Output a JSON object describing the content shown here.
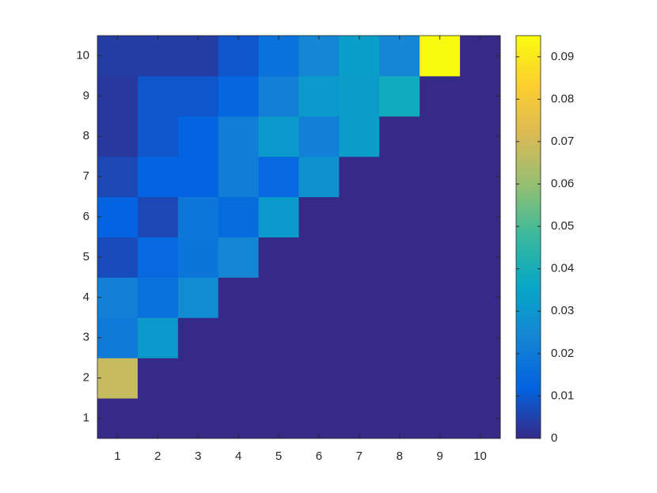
{
  "chart_data": {
    "type": "heatmap",
    "x": [
      1,
      2,
      3,
      4,
      5,
      6,
      7,
      8,
      9,
      10
    ],
    "y": [
      1,
      2,
      3,
      4,
      5,
      6,
      7,
      8,
      9,
      10
    ],
    "z": [
      [
        0,
        0,
        0,
        0,
        0,
        0,
        0,
        0,
        0,
        0
      ],
      [
        0.068,
        0,
        0,
        0,
        0,
        0,
        0,
        0,
        0,
        0
      ],
      [
        0.02,
        0.031,
        0,
        0,
        0,
        0,
        0,
        0,
        0,
        0
      ],
      [
        0.022,
        0.017,
        0.026,
        0,
        0,
        0,
        0,
        0,
        0,
        0
      ],
      [
        0.007,
        0.014,
        0.018,
        0.024,
        0,
        0,
        0,
        0,
        0,
        0
      ],
      [
        0.012,
        0.006,
        0.019,
        0.015,
        0.031,
        0,
        0,
        0,
        0,
        0
      ],
      [
        0.006,
        0.012,
        0.012,
        0.021,
        0.014,
        0.028,
        0,
        0,
        0,
        0
      ],
      [
        0.003,
        0.009,
        0.012,
        0.021,
        0.031,
        0.022,
        0.032,
        0,
        0,
        0
      ],
      [
        0.003,
        0.009,
        0.009,
        0.013,
        0.022,
        0.031,
        0.032,
        0.038,
        0,
        0
      ],
      [
        0.004,
        0.004,
        0.004,
        0.009,
        0.017,
        0.024,
        0.033,
        0.024,
        0.095,
        0
      ]
    ],
    "xlim": [
      0.5,
      10.5
    ],
    "ylim": [
      0.5,
      10.5
    ],
    "xticks": [
      1,
      2,
      3,
      4,
      5,
      6,
      7,
      8,
      9,
      10
    ],
    "yticks": [
      1,
      2,
      3,
      4,
      5,
      6,
      7,
      8,
      9,
      10
    ],
    "clim": [
      0,
      0.095
    ],
    "cticks": [
      0,
      0.01,
      0.02,
      0.03,
      0.04,
      0.05,
      0.06,
      0.07,
      0.08,
      0.09
    ],
    "colormap": [
      "#352a87",
      "#0363e1",
      "#1485d4",
      "#06a7c6",
      "#38b99e",
      "#92bf73",
      "#d9ba56",
      "#fcce2e",
      "#f9fb0e"
    ]
  }
}
